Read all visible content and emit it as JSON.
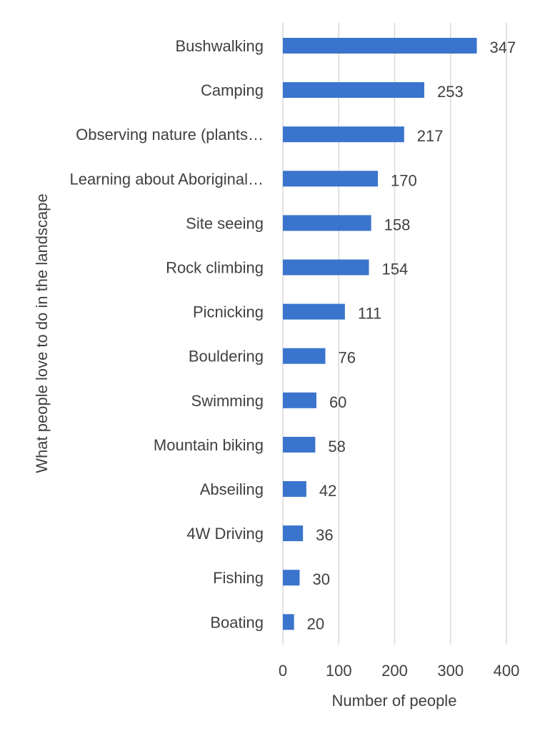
{
  "chart_data": {
    "type": "bar",
    "orientation": "horizontal",
    "categories": [
      "Bushwalking",
      "Camping",
      "Observing nature (plants…",
      "Learning about Aboriginal…",
      "Site seeing",
      "Rock climbing",
      "Picnicking",
      "Bouldering",
      "Swimming",
      "Mountain biking",
      "Abseiling",
      "4W Driving",
      "Fishing",
      "Boating"
    ],
    "values": [
      347,
      253,
      217,
      170,
      158,
      154,
      111,
      76,
      60,
      58,
      42,
      36,
      30,
      20
    ],
    "data_labels": [
      "347",
      "253",
      "217",
      "170",
      "158",
      "154",
      "111",
      "76",
      "60",
      "58",
      "42",
      "36",
      "30",
      "20"
    ],
    "xlabel": "Number of people",
    "ylabel": "What people love to do in the landscape",
    "xlim": [
      0,
      400
    ],
    "xticks": [
      "0",
      "100",
      "200",
      "300",
      "400"
    ],
    "grid": "vertical",
    "bar_color": "#3a74cc",
    "grid_color": "#d9d9d9",
    "text_color": "#404040"
  }
}
